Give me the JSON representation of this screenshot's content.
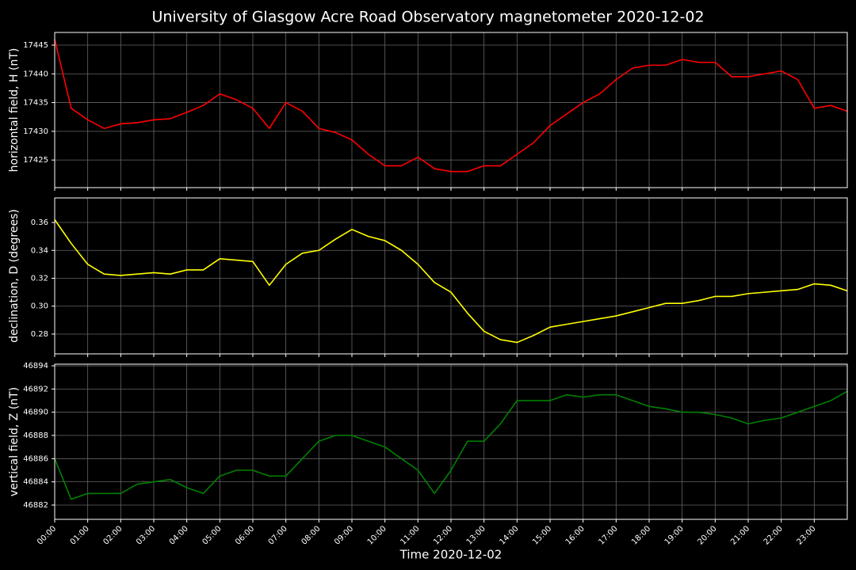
{
  "chart_data": [
    {
      "type": "line",
      "title": "University of Glasgow Acre Road Observatory magnetometer 2020-12-02",
      "ylabel": "horizontal field, H (nT)",
      "color": "#ff0000",
      "grid": true,
      "x": [
        0,
        0.5,
        1,
        1.5,
        2,
        2.5,
        3,
        3.5,
        4,
        4.5,
        5,
        5.5,
        6,
        6.5,
        7,
        7.5,
        8,
        8.5,
        9,
        9.5,
        10,
        10.5,
        11,
        11.5,
        12,
        12.5,
        13,
        13.5,
        14,
        14.5,
        15,
        15.5,
        16,
        16.5,
        17,
        17.5,
        18,
        18.5,
        19,
        19.5,
        20,
        20.5,
        21,
        21.5,
        22,
        22.5,
        23,
        23.5,
        24
      ],
      "values": [
        17446,
        17434,
        17432,
        17430.5,
        17431.3,
        17431.5,
        17432,
        17432.2,
        17433.3,
        17434.5,
        17436.5,
        17435.5,
        17434,
        17430.5,
        17435,
        17433.5,
        17430.5,
        17429.8,
        17428.5,
        17426,
        17424,
        17424,
        17425.5,
        17423.5,
        17423,
        17423,
        17424,
        17424,
        17426,
        17428,
        17431,
        17433,
        17435,
        17436.5,
        17439,
        17441,
        17441.5,
        17441.5,
        17442.5,
        17442,
        17442,
        17439.5,
        17439.5,
        17440,
        17440.5,
        17439,
        17434,
        17434.5,
        17433.5
      ],
      "xlim": [
        0,
        24
      ],
      "ylim": [
        17420.2,
        17447.2
      ],
      "yticks": [
        17425,
        17430,
        17435,
        17440,
        17445
      ]
    },
    {
      "type": "line",
      "ylabel": "declination, D (degrees)",
      "color": "#ffff00",
      "grid": true,
      "x": [
        0,
        0.5,
        1,
        1.5,
        2,
        2.5,
        3,
        3.5,
        4,
        4.5,
        5,
        5.5,
        6,
        6.5,
        7,
        7.5,
        8,
        8.5,
        9,
        9.5,
        10,
        10.5,
        11,
        11.5,
        12,
        12.5,
        13,
        13.5,
        14,
        14.5,
        15,
        15.5,
        16,
        16.5,
        17,
        17.5,
        18,
        18.5,
        19,
        19.5,
        20,
        20.5,
        21,
        21.5,
        22,
        22.5,
        23,
        23.5,
        24
      ],
      "values": [
        0.362,
        0.345,
        0.33,
        0.323,
        0.322,
        0.323,
        0.324,
        0.323,
        0.326,
        0.326,
        0.334,
        0.333,
        0.332,
        0.315,
        0.33,
        0.338,
        0.34,
        0.348,
        0.355,
        0.35,
        0.347,
        0.34,
        0.33,
        0.317,
        0.31,
        0.295,
        0.282,
        0.276,
        0.274,
        0.279,
        0.285,
        0.287,
        0.289,
        0.291,
        0.293,
        0.296,
        0.299,
        0.302,
        0.302,
        0.304,
        0.307,
        0.307,
        0.309,
        0.31,
        0.311,
        0.312,
        0.316,
        0.315,
        0.311
      ],
      "xlim": [
        0,
        24
      ],
      "ylim": [
        0.2658,
        0.3776
      ],
      "yticks": [
        0.28,
        {
          "value": 0.3,
          "label": "0.30"
        },
        0.32,
        0.34,
        0.36
      ]
    },
    {
      "type": "line",
      "ylabel": "vertical field, Z (nT)",
      "xlabel": "Time 2020-12-02",
      "color": "#008000",
      "grid": true,
      "x": [
        0,
        0.5,
        1,
        1.5,
        2,
        2.5,
        3,
        3.5,
        4,
        4.5,
        5,
        5.5,
        6,
        6.5,
        7,
        7.5,
        8,
        8.5,
        9,
        9.5,
        10,
        10.5,
        11,
        11.5,
        12,
        12.5,
        13,
        13.5,
        14,
        14.5,
        15,
        15.5,
        16,
        16.5,
        17,
        17.5,
        18,
        18.5,
        19,
        19.5,
        20,
        20.5,
        21,
        21.5,
        22,
        22.5,
        23,
        23.5,
        24
      ],
      "values": [
        46886,
        46882.5,
        46883,
        46883,
        46883,
        46883.8,
        46884,
        46884.2,
        46883.5,
        46883,
        46884.5,
        46885,
        46885,
        46884.5,
        46884.5,
        46886,
        46887.5,
        46888,
        46888,
        46887.5,
        46887,
        46886,
        46885,
        46883,
        46885,
        46887.5,
        46887.5,
        46889,
        46891,
        46891,
        46891,
        46891.5,
        46891.3,
        46891.5,
        46891.5,
        46891,
        46890.5,
        46890.3,
        46890,
        46890,
        46889.8,
        46889.5,
        46889,
        46889.3,
        46889.5,
        46890,
        46890.5,
        46891,
        46891.8
      ],
      "xlim": [
        0,
        24
      ],
      "ylim": [
        46880.77,
        46894.14
      ],
      "yticks": [
        46882,
        46884,
        46886,
        46888,
        46890,
        46892,
        46894
      ],
      "xticks": [
        {
          "value": 0,
          "label": "00:00"
        },
        {
          "value": 1,
          "label": "01:00"
        },
        {
          "value": 2,
          "label": "02:00"
        },
        {
          "value": 3,
          "label": "03:00"
        },
        {
          "value": 4,
          "label": "04:00"
        },
        {
          "value": 5,
          "label": "05:00"
        },
        {
          "value": 6,
          "label": "06:00"
        },
        {
          "value": 7,
          "label": "07:00"
        },
        {
          "value": 8,
          "label": "08:00"
        },
        {
          "value": 9,
          "label": "09:00"
        },
        {
          "value": 10,
          "label": "10:00"
        },
        {
          "value": 11,
          "label": "11:00"
        },
        {
          "value": 12,
          "label": "12:00"
        },
        {
          "value": 13,
          "label": "13:00"
        },
        {
          "value": 14,
          "label": "14:00"
        },
        {
          "value": 15,
          "label": "15:00"
        },
        {
          "value": 16,
          "label": "16:00"
        },
        {
          "value": 17,
          "label": "17:00"
        },
        {
          "value": 18,
          "label": "18:00"
        },
        {
          "value": 19,
          "label": "19:00"
        },
        {
          "value": 20,
          "label": "20:00"
        },
        {
          "value": 21,
          "label": "21:00"
        },
        {
          "value": 22,
          "label": "22:00"
        },
        {
          "value": 23,
          "label": "23:00"
        }
      ]
    }
  ]
}
